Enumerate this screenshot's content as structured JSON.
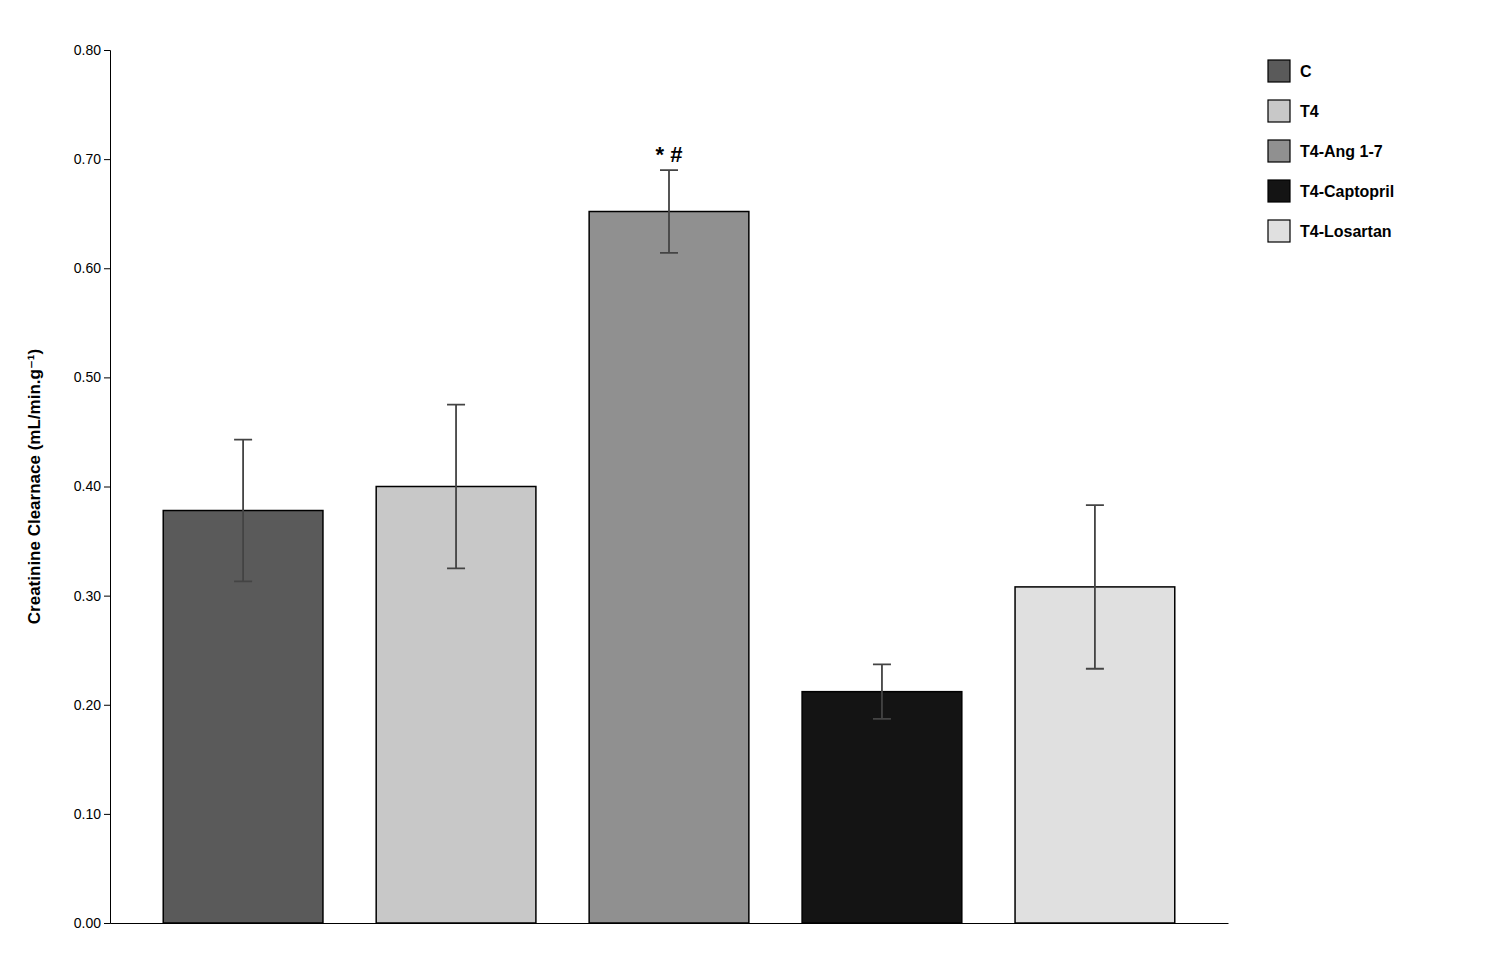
{
  "chart_data": {
    "type": "bar",
    "categories": [
      "C",
      "T4",
      "T4-Ang 1-7",
      "T4-Captopril",
      "T4-Losartan"
    ],
    "values": [
      0.378,
      0.4,
      0.652,
      0.212,
      0.308
    ],
    "errors": [
      0.065,
      0.075,
      0.038,
      0.025,
      0.075
    ],
    "colors": [
      "#5a5a5a",
      "#c8c8c8",
      "#909090",
      "#141414",
      "#e0e0e0"
    ],
    "ylabel": "Creatinine Clearnace (mL/min.g⁻¹)",
    "ylim": [
      0.0,
      0.8
    ],
    "yticks": [
      {
        "value": 0.0,
        "label": "0.00"
      },
      {
        "value": 0.1,
        "label": "0.10"
      },
      {
        "value": 0.2,
        "label": "0.20"
      },
      {
        "value": 0.3,
        "label": "0.30"
      },
      {
        "value": 0.4,
        "label": "0.40"
      },
      {
        "value": 0.5,
        "label": "0.50"
      },
      {
        "value": 0.6,
        "label": "0.60"
      },
      {
        "value": 0.7,
        "label": "0.70"
      },
      {
        "value": 0.8,
        "label": "0.80"
      }
    ],
    "annotations": [
      {
        "text": "* #",
        "category": "T4-Ang 1-7"
      }
    ],
    "legend": "right",
    "tick_labels": "y",
    "grid": false
  }
}
